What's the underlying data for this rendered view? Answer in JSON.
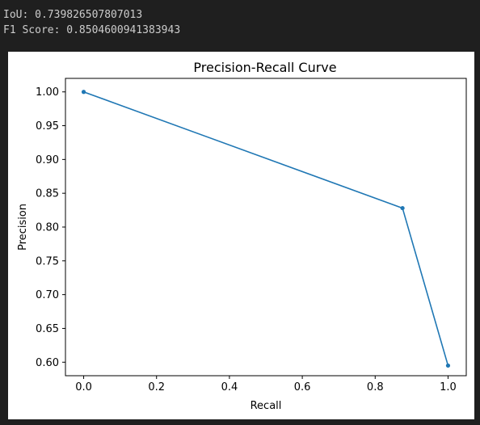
{
  "output": {
    "line1": "IoU: 0.739826507807013",
    "line2": "F1 Score: 0.8504600941383943"
  },
  "chart_data": {
    "type": "line",
    "title": "Precision-Recall Curve",
    "xlabel": "Recall",
    "ylabel": "Precision",
    "xlim": [
      -0.05,
      1.05
    ],
    "ylim": [
      0.58,
      1.02
    ],
    "xticks": [
      0.0,
      0.2,
      0.4,
      0.6,
      0.8,
      1.0
    ],
    "xtick_labels": [
      "0.0",
      "0.2",
      "0.4",
      "0.6",
      "0.8",
      "1.0"
    ],
    "yticks": [
      0.6,
      0.65,
      0.7,
      0.75,
      0.8,
      0.85,
      0.9,
      0.95,
      1.0
    ],
    "ytick_labels": [
      "0.60",
      "0.65",
      "0.70",
      "0.75",
      "0.80",
      "0.85",
      "0.90",
      "0.95",
      "1.00"
    ],
    "grid": false,
    "marker": "circle",
    "series_color": "#1f77b4",
    "x": [
      0.0,
      0.875,
      1.0
    ],
    "y": [
      1.0,
      0.828,
      0.595
    ]
  }
}
